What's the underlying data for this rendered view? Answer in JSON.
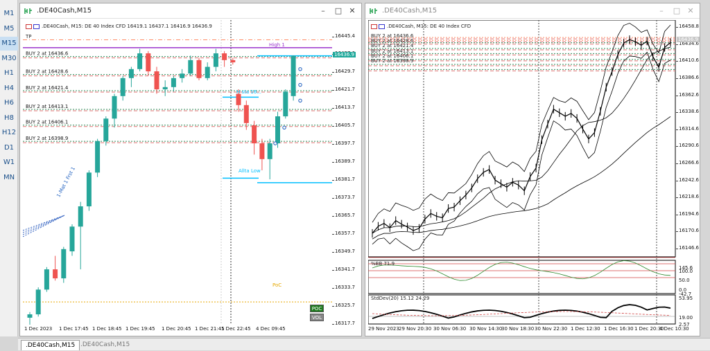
{
  "timeframes": [
    "M1",
    "M5",
    "M15",
    "M30",
    "H1",
    "H4",
    "H6",
    "H8",
    "H12",
    "D1",
    "W1",
    "MN"
  ],
  "active_timeframe": "M15",
  "left": {
    "title": ".DE40Cash,M15",
    "info": ".DE40Cash, M15:  DE 40 Index CFD  16419.1 16437.1 16416.9 16436.9",
    "tp_label": "TP",
    "price_tag": "16436.9",
    "price_scale": [
      "16445.4",
      "16437.6",
      "16429.7",
      "16421.7",
      "16413.7",
      "16405.7",
      "16397.7",
      "16389.7",
      "16381.7",
      "16373.7",
      "16365.7",
      "16357.7",
      "16349.7",
      "16341.7",
      "16333.7",
      "16325.7",
      "16317.7"
    ],
    "xlabels": [
      "1 Dec 2023",
      "1 Dec 17:45",
      "1 Dec 18:45",
      "1 Dec 19:45",
      "1 Dec 20:45",
      "1 Dec 21:45",
      "1 Dec 22:45",
      "4 Dec 09:45"
    ],
    "buy_lines": [
      {
        "label": "BUY 2 at 16436.6",
        "price": 16436.6
      },
      {
        "label": "BUY 2 at 16428.6",
        "price": 16428.6
      },
      {
        "label": "BUY 2 at 16421.4",
        "price": 16421.4
      },
      {
        "label": "BUY 2 at 16413.1",
        "price": 16413.1
      },
      {
        "label": "BUY 2 at 16406.1",
        "price": 16406.1
      },
      {
        "label": "BUY 2 at 16398.9",
        "price": 16398.9
      }
    ],
    "high_label": "High 1",
    "hsta_label": "H sta 16...",
    "lsta_label": "Allta Low",
    "poc_label": "PoC",
    "btn_poc": "POC",
    "btn_vol": "VOL",
    "diag_label": "1-Mat 1 Frst 1",
    "colors": {
      "bull": "#26a69a",
      "bear": "#ef5350",
      "high": "#9933cc",
      "cyan": "#00bfff",
      "poc": "#e6a800"
    }
  },
  "right": {
    "title": ".DE40Cash,M15",
    "info": ".DE40Cash, M15:  DE 40 Index CFD",
    "buy_labels": [
      "BUY 2 at 16436.6",
      "BUY 2 at 16428.6",
      "BUY 2 at 16421.4",
      "BUY 2 at 16413.1",
      "BUY 2 at 16406.1",
      "BUY 2 at 16398.9"
    ],
    "price_scale": [
      "16458.8",
      "16434.6",
      "16410.6",
      "16386.6",
      "16362.6",
      "16338.6",
      "16314.6",
      "16290.6",
      "16266.6",
      "16242.6",
      "16218.6",
      "16194.6",
      "16170.6",
      "16146.6"
    ],
    "price_tag": "16436.9",
    "bb_label": "%BB 71.9",
    "bb_scale": [
      "145.6",
      "100.0",
      "50.0",
      "0.0",
      "-42.7"
    ],
    "sd_label": "StdDev(20) 15.12 24.29",
    "sd_scale": [
      "53.95",
      "19.00",
      "2.57"
    ],
    "xlabels": [
      "29 Nov 2023",
      "29 Nov 20:30",
      "30 Nov 06:30",
      "30 Nov 14:30",
      "30 Nov 18:30",
      "30 Nov 22:30",
      "1 Dec 12:30",
      "1 Dec 16:30",
      "1 Dec 20:30",
      "4 Dec 10:30"
    ]
  },
  "tabs": [
    ".DE40Cash,M15",
    ".DE40Cash,M15"
  ]
}
